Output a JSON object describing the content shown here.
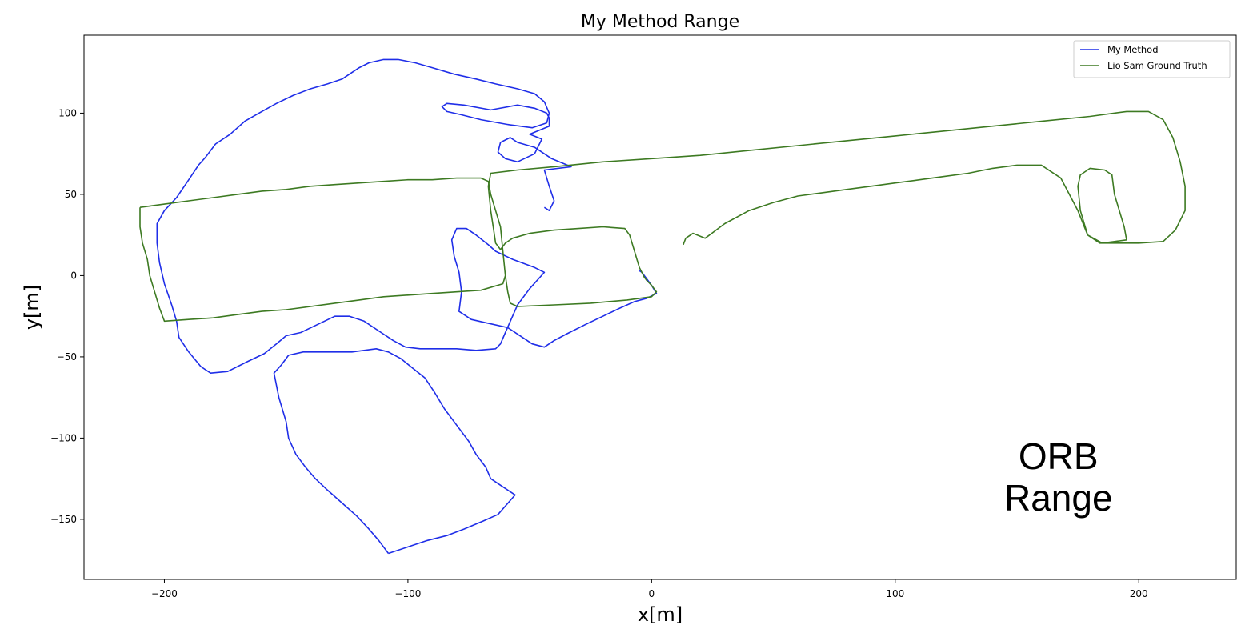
{
  "chart_data": {
    "type": "line",
    "title": "My Method Range",
    "xlabel": "x[m]",
    "ylabel": "y[m]",
    "xlim": [
      -233,
      240
    ],
    "ylim": [
      -187,
      148
    ],
    "xticks": [
      -200,
      -100,
      0,
      100,
      200
    ],
    "yticks": [
      -150,
      -100,
      -50,
      0,
      50,
      100
    ],
    "xtick_labels": [
      "−200",
      "−100",
      "0",
      "100",
      "200"
    ],
    "ytick_labels": [
      "−150",
      "−100",
      "−50",
      "0",
      "50",
      "100"
    ],
    "grid": false,
    "legend_position": "top-right",
    "series": [
      {
        "name": "My Method",
        "color": "#1f2ee8",
        "points": [
          [
            -44,
            42
          ],
          [
            -42,
            40
          ],
          [
            -40,
            46
          ],
          [
            -42,
            55
          ],
          [
            -44,
            65
          ],
          [
            -33,
            67
          ],
          [
            -41,
            72
          ],
          [
            -48,
            79
          ],
          [
            -55,
            82
          ],
          [
            -58,
            85
          ],
          [
            -62,
            82
          ],
          [
            -63,
            76
          ],
          [
            -60,
            72
          ],
          [
            -55,
            70
          ],
          [
            -48,
            75
          ],
          [
            -45,
            84
          ],
          [
            -50,
            87
          ],
          [
            -42,
            92
          ],
          [
            -42,
            97
          ],
          [
            -43,
            100
          ],
          [
            -48,
            103
          ],
          [
            -55,
            105
          ],
          [
            -66,
            102
          ],
          [
            -77,
            105
          ],
          [
            -84,
            106
          ],
          [
            -86,
            104
          ],
          [
            -84,
            101
          ],
          [
            -78,
            99
          ],
          [
            -70,
            96
          ],
          [
            -59,
            93
          ],
          [
            -49,
            91
          ],
          [
            -43,
            94
          ],
          [
            -42,
            100
          ],
          [
            -44,
            107
          ],
          [
            -48,
            112
          ],
          [
            -55,
            115
          ],
          [
            -64,
            118
          ],
          [
            -72,
            121
          ],
          [
            -81,
            124
          ],
          [
            -90,
            128
          ],
          [
            -97,
            131
          ],
          [
            -104,
            133
          ],
          [
            -110,
            133
          ],
          [
            -116,
            131
          ],
          [
            -120,
            128
          ],
          [
            -124,
            124
          ],
          [
            -127,
            121
          ],
          [
            -133,
            118
          ],
          [
            -140,
            115
          ],
          [
            -147,
            111
          ],
          [
            -154,
            106
          ],
          [
            -160,
            101
          ],
          [
            -167,
            95
          ],
          [
            -173,
            87
          ],
          [
            -179,
            81
          ],
          [
            -183,
            73
          ],
          [
            -186,
            68
          ],
          [
            -190,
            59
          ],
          [
            -195,
            48
          ],
          [
            -200,
            40
          ],
          [
            -203,
            32
          ],
          [
            -203,
            20
          ],
          [
            -202,
            8
          ],
          [
            -200,
            -5
          ],
          [
            -197,
            -18
          ],
          [
            -195,
            -28
          ],
          [
            -194,
            -38
          ],
          [
            -190,
            -47
          ],
          [
            -185,
            -56
          ],
          [
            -181,
            -60
          ],
          [
            -174,
            -59
          ],
          [
            -166,
            -53
          ],
          [
            -159,
            -48
          ],
          [
            -154,
            -42
          ],
          [
            -150,
            -37
          ],
          [
            -144,
            -35
          ],
          [
            -137,
            -30
          ],
          [
            -130,
            -25
          ],
          [
            -124,
            -25
          ],
          [
            -118,
            -28
          ],
          [
            -111,
            -35
          ],
          [
            -106,
            -40
          ],
          [
            -101,
            -44
          ],
          [
            -95,
            -45
          ],
          [
            -88,
            -45
          ],
          [
            -80,
            -45
          ],
          [
            -72,
            -46
          ],
          [
            -64,
            -45
          ],
          [
            -62,
            -42
          ],
          [
            -60,
            -35
          ],
          [
            -55,
            -18
          ],
          [
            -50,
            -8
          ],
          [
            -44,
            2
          ],
          [
            -48,
            5
          ],
          [
            -57,
            10
          ],
          [
            -64,
            15
          ],
          [
            -67,
            19
          ],
          [
            -72,
            25
          ],
          [
            -76,
            29
          ],
          [
            -80,
            29
          ],
          [
            -82,
            22
          ],
          [
            -81,
            12
          ],
          [
            -79,
            2
          ],
          [
            -78,
            -10
          ],
          [
            -79,
            -22
          ],
          [
            -74,
            -27
          ],
          [
            -68,
            -29
          ],
          [
            -59,
            -32
          ],
          [
            -53,
            -38
          ],
          [
            -49,
            -42
          ],
          [
            -44,
            -44
          ],
          [
            -40,
            -40
          ],
          [
            -35,
            -36
          ],
          [
            -27,
            -30
          ],
          [
            -20,
            -25
          ],
          [
            -13,
            -20
          ],
          [
            -7,
            -16
          ],
          [
            -2,
            -14
          ],
          [
            2,
            -11
          ],
          [
            0,
            -6
          ],
          [
            -2,
            -2
          ],
          [
            -4,
            2
          ],
          [
            -5,
            3
          ]
        ]
      },
      {
        "name": "My Method",
        "color": "#1f2ee8",
        "points": [
          [
            -108,
            -171
          ],
          [
            -100,
            -167
          ],
          [
            -92,
            -163
          ],
          [
            -84,
            -160
          ],
          [
            -77,
            -156
          ],
          [
            -69,
            -151
          ],
          [
            -63,
            -147
          ],
          [
            -56,
            -135
          ],
          [
            -61,
            -130
          ],
          [
            -66,
            -125
          ],
          [
            -68,
            -118
          ],
          [
            -72,
            -110
          ],
          [
            -75,
            -102
          ],
          [
            -80,
            -92
          ],
          [
            -85,
            -82
          ],
          [
            -89,
            -72
          ],
          [
            -93,
            -63
          ],
          [
            -98,
            -57
          ],
          [
            -103,
            -51
          ],
          [
            -108,
            -47
          ],
          [
            -113,
            -45
          ],
          [
            -123,
            -47
          ],
          [
            -133,
            -47
          ],
          [
            -143,
            -47
          ],
          [
            -149,
            -49
          ],
          [
            -152,
            -55
          ],
          [
            -155,
            -60
          ],
          [
            -153,
            -75
          ],
          [
            -150,
            -90
          ],
          [
            -149,
            -100
          ],
          [
            -146,
            -110
          ],
          [
            -142,
            -118
          ],
          [
            -138,
            -125
          ],
          [
            -133,
            -132
          ],
          [
            -127,
            -140
          ],
          [
            -121,
            -148
          ],
          [
            -116,
            -156
          ],
          [
            -112,
            -163
          ],
          [
            -108,
            -171
          ]
        ]
      },
      {
        "name": "Lio Sam Ground Truth",
        "color": "#3d7a22",
        "points": [
          [
            -210,
            42
          ],
          [
            -200,
            44
          ],
          [
            -190,
            46
          ],
          [
            -180,
            48
          ],
          [
            -170,
            50
          ],
          [
            -160,
            52
          ],
          [
            -150,
            53
          ],
          [
            -140,
            55
          ],
          [
            -130,
            56
          ],
          [
            -120,
            57
          ],
          [
            -110,
            58
          ],
          [
            -100,
            59
          ],
          [
            -90,
            59
          ],
          [
            -80,
            60
          ],
          [
            -70,
            60
          ],
          [
            -67,
            58
          ],
          [
            -66,
            50
          ],
          [
            -64,
            40
          ],
          [
            -62,
            30
          ],
          [
            -61,
            15
          ],
          [
            -60,
            0
          ],
          [
            -61,
            -5
          ],
          [
            -70,
            -9
          ],
          [
            -80,
            -10
          ],
          [
            -90,
            -11
          ],
          [
            -100,
            -12
          ],
          [
            -110,
            -13
          ],
          [
            -120,
            -15
          ],
          [
            -130,
            -17
          ],
          [
            -140,
            -19
          ],
          [
            -150,
            -21
          ],
          [
            -160,
            -22
          ],
          [
            -170,
            -24
          ],
          [
            -180,
            -26
          ],
          [
            -190,
            -27
          ],
          [
            -200,
            -28
          ],
          [
            -202,
            -20
          ],
          [
            -204,
            -10
          ],
          [
            -206,
            0
          ],
          [
            -207,
            10
          ],
          [
            -209,
            20
          ],
          [
            -210,
            30
          ],
          [
            -210,
            42
          ]
        ]
      },
      {
        "name": "Lio Sam Ground Truth",
        "color": "#3d7a22",
        "points": [
          [
            -60,
            0
          ],
          [
            -59,
            -10
          ],
          [
            -58,
            -17
          ],
          [
            -55,
            -19
          ],
          [
            -40,
            -18
          ],
          [
            -25,
            -17
          ],
          [
            -10,
            -15
          ],
          [
            0,
            -13
          ],
          [
            2,
            -10
          ],
          [
            0,
            -6
          ],
          [
            -2,
            -3
          ],
          [
            -3,
            -1
          ],
          [
            -5,
            5
          ],
          [
            -7,
            15
          ],
          [
            -9,
            25
          ],
          [
            -11,
            29
          ],
          [
            -20,
            30
          ],
          [
            -30,
            29
          ],
          [
            -40,
            28
          ],
          [
            -50,
            26
          ],
          [
            -57,
            23
          ],
          [
            -60,
            20
          ],
          [
            -62,
            16
          ],
          [
            -64,
            20
          ],
          [
            -65,
            30
          ],
          [
            -66,
            40
          ],
          [
            -67,
            55
          ],
          [
            -66,
            63
          ],
          [
            -55,
            65
          ],
          [
            -40,
            67
          ],
          [
            -20,
            70
          ],
          [
            0,
            72
          ],
          [
            20,
            74
          ],
          [
            40,
            77
          ],
          [
            60,
            80
          ],
          [
            80,
            83
          ],
          [
            100,
            86
          ],
          [
            120,
            89
          ],
          [
            140,
            92
          ],
          [
            160,
            95
          ],
          [
            180,
            98
          ],
          [
            195,
            101
          ],
          [
            204,
            101
          ],
          [
            210,
            96
          ],
          [
            214,
            85
          ],
          [
            217,
            70
          ],
          [
            219,
            55
          ],
          [
            219,
            40
          ],
          [
            215,
            28
          ],
          [
            210,
            21
          ],
          [
            200,
            20
          ],
          [
            190,
            20
          ],
          [
            184,
            20
          ],
          [
            179,
            25
          ],
          [
            176,
            40
          ],
          [
            175,
            55
          ],
          [
            176,
            62
          ],
          [
            180,
            66
          ],
          [
            186,
            65
          ],
          [
            189,
            62
          ],
          [
            190,
            50
          ],
          [
            192,
            40
          ],
          [
            194,
            30
          ],
          [
            195,
            22
          ],
          [
            190,
            21
          ],
          [
            185,
            20
          ],
          [
            179,
            25
          ],
          [
            175,
            40
          ],
          [
            168,
            60
          ],
          [
            160,
            68
          ],
          [
            150,
            68
          ],
          [
            140,
            66
          ],
          [
            130,
            63
          ],
          [
            120,
            61
          ],
          [
            110,
            59
          ],
          [
            100,
            57
          ],
          [
            90,
            55
          ],
          [
            80,
            53
          ],
          [
            70,
            51
          ],
          [
            60,
            49
          ],
          [
            50,
            45
          ],
          [
            40,
            40
          ],
          [
            30,
            32
          ],
          [
            22,
            23
          ],
          [
            17,
            26
          ],
          [
            14,
            23
          ],
          [
            13,
            19
          ]
        ]
      }
    ],
    "legend": [
      {
        "label": "My Method",
        "color": "#1f2ee8"
      },
      {
        "label": "Lio Sam Ground Truth",
        "color": "#3d7a22"
      }
    ],
    "annotation": {
      "line1": "ORB",
      "line2": "Range",
      "at": [
        167,
        -125
      ]
    }
  }
}
